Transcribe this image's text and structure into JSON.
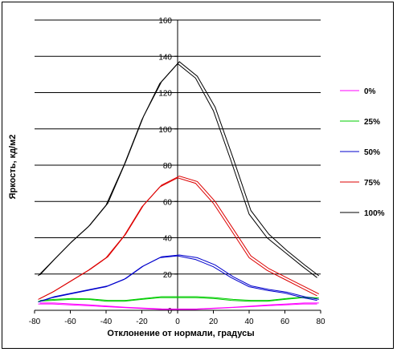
{
  "chart_data": {
    "type": "line",
    "title": "",
    "xlabel": "Отклонение от нормали, градусы",
    "ylabel": "Яркость, кд/м2",
    "xlim": [
      -80,
      80
    ],
    "ylim": [
      0,
      160
    ],
    "xticks": [
      -80,
      -60,
      -40,
      -20,
      0,
      20,
      40,
      60,
      80
    ],
    "yticks": [
      0,
      20,
      40,
      60,
      80,
      100,
      120,
      140,
      160
    ],
    "grid": "horizontal",
    "legend_position": "right",
    "series": [
      {
        "name": "0%",
        "color": "#ff00ff",
        "x": [
          -78,
          -70,
          -60,
          -50,
          -40,
          -30,
          -20,
          -10,
          0,
          10,
          20,
          30,
          40,
          50,
          60,
          70,
          78
        ],
        "y": [
          3.5,
          3.5,
          3,
          2.5,
          2,
          1.5,
          1,
          0.5,
          0.5,
          0.5,
          1,
          1.5,
          2,
          2.5,
          3,
          3.5,
          3.5
        ],
        "y2": [
          4,
          4,
          3.5,
          3,
          2.3,
          1.7,
          1.2,
          0.8,
          0.7,
          0.8,
          1.2,
          1.7,
          2.3,
          3,
          3.5,
          4,
          4
        ]
      },
      {
        "name": "25%",
        "color": "#00cc00",
        "x": [
          -78,
          -70,
          -60,
          -50,
          -40,
          -30,
          -20,
          -10,
          0,
          10,
          20,
          30,
          40,
          50,
          60,
          70,
          78
        ],
        "y": [
          5,
          5.5,
          6,
          6,
          5,
          5,
          6,
          7,
          7,
          7,
          6.5,
          5.5,
          5,
          5,
          6,
          7,
          6.5
        ],
        "y2": [
          5.5,
          6,
          6.5,
          6.3,
          5.5,
          5.5,
          6.5,
          7.5,
          7.5,
          7.5,
          7,
          6,
          5.5,
          5.5,
          6.5,
          7.3,
          6.8
        ]
      },
      {
        "name": "50%",
        "color": "#0000cc",
        "x": [
          -78,
          -70,
          -60,
          -50,
          -40,
          -30,
          -20,
          -10,
          0,
          10,
          20,
          30,
          40,
          50,
          60,
          70,
          78
        ],
        "y": [
          4.5,
          7,
          9,
          11,
          13,
          17,
          24,
          29,
          30,
          28,
          24,
          18,
          13,
          11,
          9.5,
          7,
          5.5
        ],
        "y2": [
          5,
          7.5,
          9.5,
          11.5,
          13.5,
          17.5,
          24.5,
          29.5,
          30.5,
          29,
          25,
          18.5,
          13.5,
          11.5,
          10,
          7.5,
          6
        ]
      },
      {
        "name": "75%",
        "color": "#dd0000",
        "x": [
          -78,
          -70,
          -60,
          -50,
          -40,
          -30,
          -20,
          -10,
          0,
          10,
          20,
          30,
          40,
          50,
          60,
          70,
          78
        ],
        "y": [
          6,
          10,
          16,
          22,
          29,
          41,
          57,
          68,
          73,
          70,
          59,
          44,
          29,
          22,
          17,
          12,
          8
        ],
        "y2": [
          6.5,
          10.5,
          16.5,
          22.5,
          29.5,
          42,
          58,
          69,
          74,
          71,
          60,
          45,
          30,
          23,
          18,
          13,
          9
        ]
      },
      {
        "name": "100%",
        "color": "#000000",
        "x": [
          -78,
          -70,
          -60,
          -50,
          -40,
          -30,
          -20,
          -10,
          0,
          10,
          20,
          30,
          40,
          50,
          60,
          70,
          78
        ],
        "y": [
          19,
          27,
          37,
          46,
          58,
          80,
          105,
          125,
          136,
          128,
          110,
          82,
          53,
          40,
          32,
          24,
          18
        ],
        "y2": [
          19.5,
          28,
          38,
          47,
          59,
          82,
          107,
          126,
          137,
          129,
          112,
          84,
          55,
          42,
          33,
          25,
          19
        ]
      }
    ]
  }
}
